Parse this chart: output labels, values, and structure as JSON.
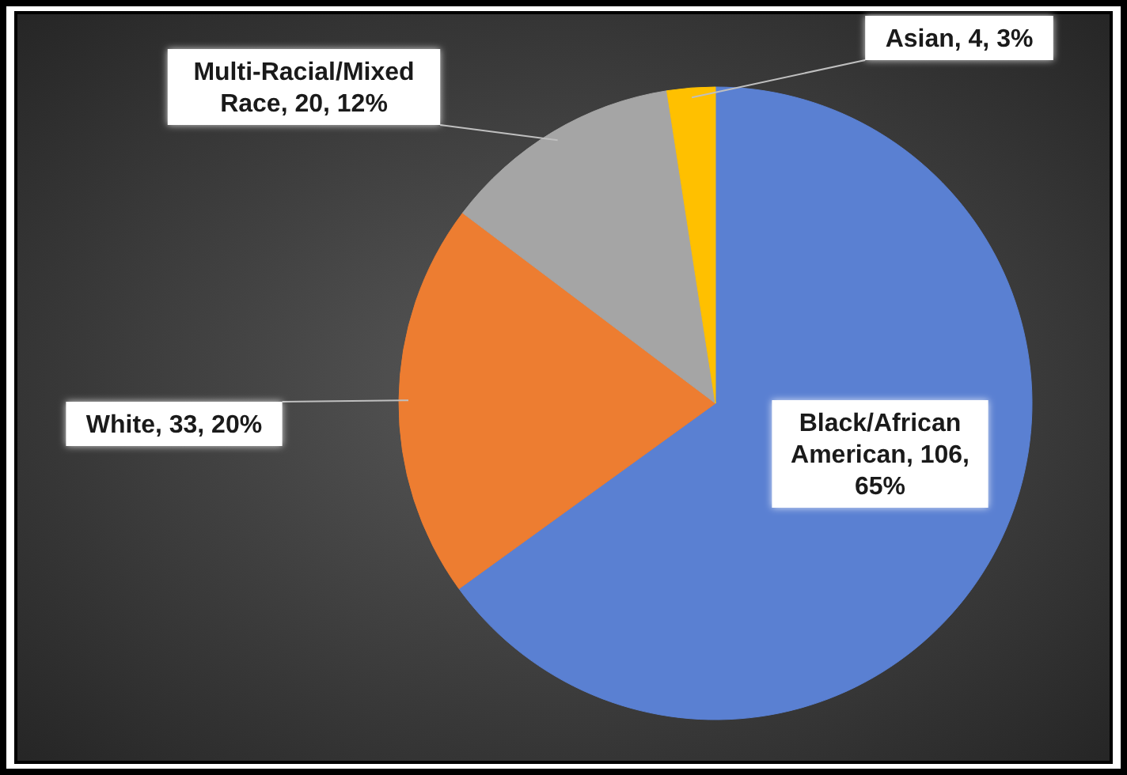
{
  "chart_data": {
    "type": "pie",
    "categories": [
      "Black/African American",
      "White",
      "Multi-Racial/Mixed Race",
      "Asian"
    ],
    "values": [
      106,
      33,
      20,
      4
    ],
    "colors": [
      "#5a80d2",
      "#ed7d31",
      "#a5a5a5",
      "#ffc000"
    ],
    "value_labels": [
      ", 106, 65%",
      ", 33, 20%",
      ", 20, 12%",
      ", 4, 3%"
    ]
  }
}
